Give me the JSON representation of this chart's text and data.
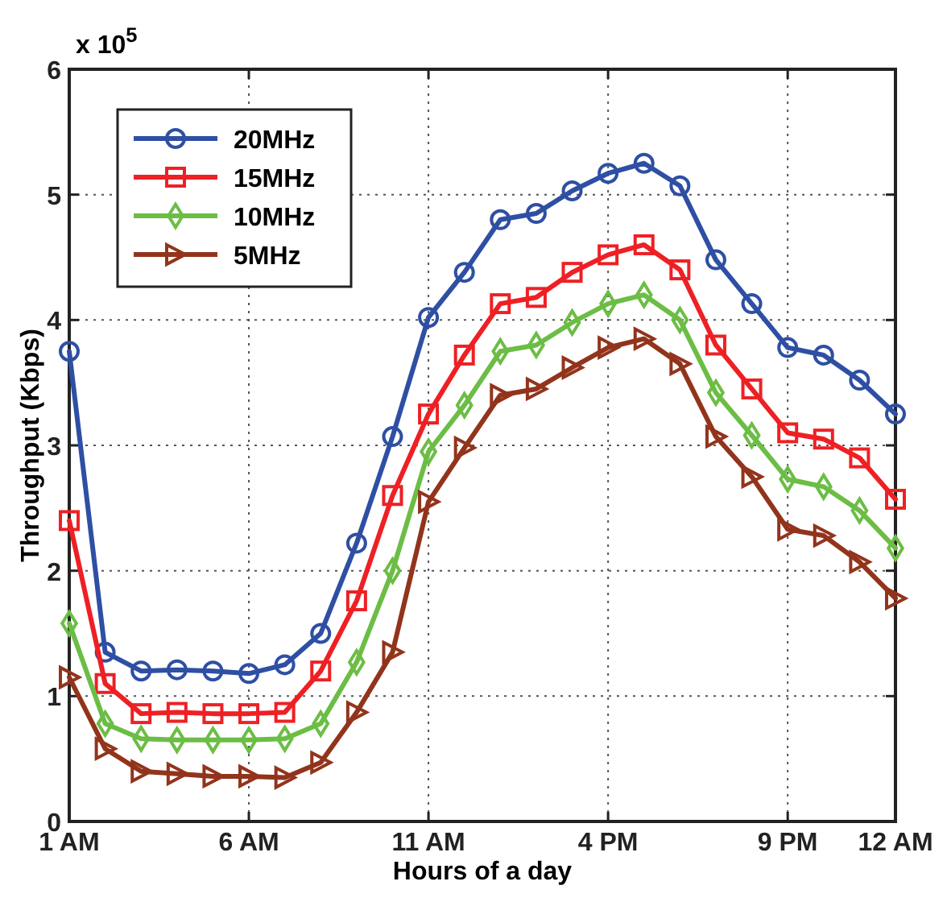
{
  "chart_data": {
    "type": "line",
    "xlabel": "Hours of a day",
    "ylabel": "Throughput (Kbps)",
    "annotations": [
      "x 10$^{5}$"
    ],
    "categories": [
      "1 AM",
      null,
      null,
      null,
      null,
      "6 AM",
      null,
      null,
      null,
      null,
      "11 AM",
      null,
      null,
      null,
      null,
      "4 PM",
      null,
      null,
      null,
      null,
      "9 PM",
      null,
      null,
      "12 AM"
    ],
    "ylim": [
      0,
      6
    ],
    "yticks": [
      0,
      1,
      2,
      3,
      4,
      5,
      6
    ],
    "grid": true,
    "legend": "top left",
    "line_style": "solid",
    "series": [
      {
        "name": "20MHz",
        "color": "#2e4fa3",
        "marker": "circle",
        "values": [
          3.75,
          1.35,
          1.2,
          1.21,
          1.2,
          1.18,
          1.25,
          1.5,
          2.22,
          3.07,
          4.02,
          4.38,
          4.8,
          4.85,
          5.03,
          5.17,
          5.25,
          5.07,
          4.48,
          4.13,
          3.78,
          3.72,
          3.52,
          3.25
        ]
      },
      {
        "name": "15MHz",
        "color": "#ee2024",
        "marker": "square",
        "values": [
          2.4,
          1.1,
          0.86,
          0.87,
          0.86,
          0.86,
          0.87,
          1.2,
          1.76,
          2.6,
          3.25,
          3.72,
          4.13,
          4.18,
          4.38,
          4.52,
          4.6,
          4.4,
          3.8,
          3.45,
          3.1,
          3.05,
          2.9,
          2.57
        ]
      },
      {
        "name": "10MHz",
        "color": "#6cbd45",
        "marker": "diamond",
        "values": [
          1.58,
          0.78,
          0.66,
          0.65,
          0.65,
          0.65,
          0.66,
          0.78,
          1.27,
          2.0,
          2.95,
          3.32,
          3.75,
          3.8,
          3.98,
          4.13,
          4.2,
          4.0,
          3.42,
          3.08,
          2.73,
          2.67,
          2.48,
          2.18
        ]
      },
      {
        "name": "5MHz",
        "color": "#92341c",
        "marker": "triangle",
        "values": [
          1.15,
          0.58,
          0.4,
          0.38,
          0.36,
          0.36,
          0.35,
          0.47,
          0.87,
          1.35,
          2.55,
          2.98,
          3.4,
          3.45,
          3.62,
          3.78,
          3.85,
          3.65,
          3.07,
          2.75,
          2.33,
          2.28,
          2.07,
          1.78
        ]
      }
    ]
  }
}
